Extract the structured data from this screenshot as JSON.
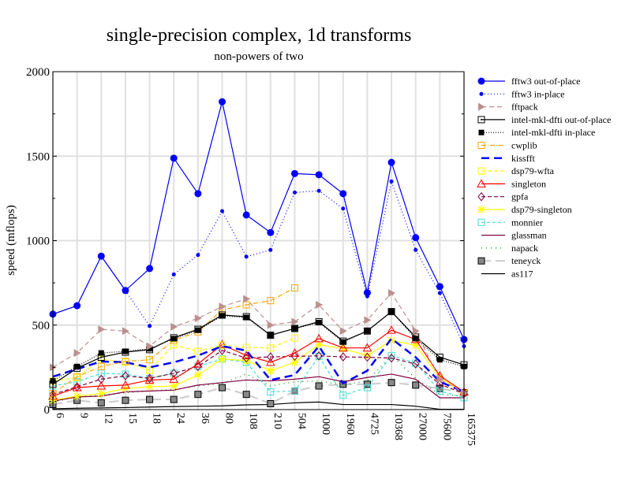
{
  "chart_data": {
    "type": "line",
    "title": "single-precision complex, 1d transforms",
    "subtitle": "non-powers of two",
    "xlabel": "",
    "ylabel": "speed (mflops)",
    "ylim": [
      0,
      2000
    ],
    "yticks": [
      "0",
      "500",
      "1000",
      "1500",
      "2000"
    ],
    "yticks_values": [
      0,
      500,
      1000,
      1500,
      2000
    ],
    "grid": true,
    "legend_placement": "right",
    "categories": [
      "6",
      "9",
      "12",
      "15",
      "18",
      "24",
      "36",
      "80",
      "108",
      "210",
      "504",
      "1000",
      "1960",
      "4725",
      "10368",
      "27000",
      "75600",
      "165375"
    ],
    "series": [
      {
        "name": "fftw3 out-of-place",
        "color": "#0000ff",
        "dash": "",
        "marker": "bigdot",
        "values": [
          565,
          615,
          908,
          705,
          835,
          1488,
          1278,
          1822,
          1152,
          1048,
          1397,
          1390,
          1278,
          692,
          1463,
          1018,
          728,
          415
        ]
      },
      {
        "name": "fftw3 in-place",
        "color": "#0000ff",
        "dash": "1,3",
        "marker": "dot",
        "values": [
          565,
          615,
          908,
          705,
          495,
          800,
          915,
          1175,
          905,
          945,
          1285,
          1295,
          1190,
          670,
          1350,
          945,
          690,
          375
        ]
      },
      {
        "name": "fftpack",
        "color": "#bc8f8f",
        "dash": "6,4",
        "marker": "tri-right",
        "values": [
          250,
          335,
          475,
          465,
          375,
          490,
          540,
          610,
          655,
          500,
          520,
          620,
          465,
          530,
          690,
          465,
          180,
          100
        ]
      },
      {
        "name": "intel-mkl-dfti out-of-place",
        "color": "#000000",
        "dash": "",
        "marker": "square-dot",
        "values": [
          150,
          245,
          310,
          340,
          355,
          425,
          475,
          560,
          550,
          440,
          480,
          520,
          405,
          465,
          580,
          430,
          310,
          265
        ]
      },
      {
        "name": "intel-mkl-dfti in-place",
        "color": "#000000",
        "dash": "1,2",
        "marker": "square-fill",
        "values": [
          170,
          255,
          335,
          345,
          360,
          420,
          470,
          555,
          545,
          440,
          480,
          515,
          400,
          465,
          580,
          420,
          295,
          255
        ]
      },
      {
        "name": "cwplib",
        "color": "#ffa500",
        "dash": "6,2,1,2",
        "marker": "square",
        "values": [
          95,
          195,
          255,
          285,
          295,
          410,
          460,
          590,
          620,
          645,
          720,
          null,
          null,
          null,
          null,
          null,
          null,
          null
        ]
      },
      {
        "name": "kissfft",
        "color": "#0000ff",
        "dash": "10,6",
        "marker": "none",
        "values": [
          195,
          240,
          285,
          280,
          250,
          280,
          320,
          375,
          350,
          175,
          205,
          375,
          155,
          230,
          420,
          310,
          165,
          105
        ]
      },
      {
        "name": "dsp79-wfta",
        "color": "#ffff00",
        "dash": "5,3",
        "marker": "square",
        "values": [
          168,
          190,
          298,
          280,
          233,
          383,
          345,
          382,
          368,
          364,
          424,
          null,
          null,
          null,
          null,
          null,
          null,
          null
        ]
      },
      {
        "name": "singleton",
        "color": "#ff0000",
        "dash": "",
        "marker": "triangle",
        "values": [
          80,
          130,
          140,
          145,
          175,
          180,
          270,
          385,
          320,
          280,
          335,
          420,
          365,
          365,
          470,
          415,
          200,
          105
        ]
      },
      {
        "name": "gpfa",
        "color": "#800040",
        "dash": "5,3",
        "marker": "diamond",
        "values": [
          90,
          135,
          180,
          200,
          185,
          215,
          255,
          350,
          305,
          312,
          315,
          318,
          312,
          310,
          305,
          270,
          150,
          95
        ]
      },
      {
        "name": "dsp79-singleton",
        "color": "#ffff00",
        "dash": "",
        "marker": "star",
        "values": [
          55,
          80,
          95,
          125,
          135,
          140,
          205,
          300,
          290,
          230,
          280,
          385,
          360,
          320,
          410,
          380,
          190,
          100
        ]
      },
      {
        "name": "monnier",
        "color": "#40e0d0",
        "dash": "4,3",
        "marker": "square",
        "values": [
          140,
          165,
          215,
          210,
          185,
          215,
          255,
          300,
          280,
          105,
          110,
          315,
          85,
          130,
          320,
          275,
          110,
          70
        ]
      },
      {
        "name": "glassman",
        "color": "#800040",
        "dash": "",
        "marker": "none",
        "values": [
          50,
          75,
          80,
          105,
          110,
          115,
          145,
          160,
          175,
          170,
          180,
          195,
          165,
          190,
          210,
          180,
          70,
          70
        ]
      },
      {
        "name": "napack",
        "color": "#008000",
        "dash": "1,5",
        "marker": "none",
        "values": [
          45,
          75,
          85,
          100,
          110,
          120,
          140,
          155,
          210,
          140,
          165,
          170,
          145,
          170,
          320,
          185,
          90,
          80
        ]
      },
      {
        "name": "teneyck",
        "color": "#cccccc",
        "dash": "12,6",
        "marker": "square-gray",
        "values": [
          30,
          55,
          40,
          55,
          60,
          60,
          90,
          130,
          90,
          35,
          110,
          140,
          150,
          150,
          160,
          145,
          125,
          100
        ]
      },
      {
        "name": "as117",
        "color": "#000000",
        "dash": "",
        "marker": "none",
        "values": [
          5,
          8,
          10,
          12,
          15,
          18,
          20,
          22,
          28,
          30,
          40,
          45,
          30,
          30,
          30,
          20,
          2,
          2
        ]
      }
    ]
  }
}
